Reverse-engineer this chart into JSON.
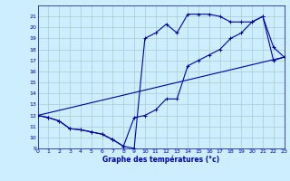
{
  "title": "Graphe des températures (°c)",
  "background_color": "#cceeff",
  "grid_color": "#aacccc",
  "line_color": "#0000aa",
  "ylim": [
    9,
    22
  ],
  "xlim": [
    0,
    23
  ],
  "yticks": [
    9,
    10,
    11,
    12,
    13,
    14,
    15,
    16,
    17,
    18,
    19,
    20,
    21
  ],
  "xticks": [
    0,
    1,
    2,
    3,
    4,
    5,
    6,
    7,
    8,
    9,
    10,
    11,
    12,
    13,
    14,
    15,
    16,
    17,
    18,
    19,
    20,
    21,
    22,
    23
  ],
  "series1_x": [
    0,
    1,
    2,
    3,
    4,
    5,
    6,
    7,
    8,
    9,
    10,
    11,
    12,
    13,
    14,
    15,
    16,
    17,
    18,
    19,
    20,
    21,
    22,
    23
  ],
  "series1_y": [
    12.0,
    11.8,
    11.5,
    10.8,
    10.7,
    10.5,
    10.3,
    9.8,
    9.2,
    9.0,
    19.0,
    19.5,
    20.3,
    19.5,
    21.2,
    21.2,
    21.2,
    21.0,
    20.5,
    20.5,
    20.5,
    21.0,
    18.2,
    17.3
  ],
  "series2_x": [
    0,
    1,
    2,
    3,
    4,
    5,
    6,
    7,
    8,
    9,
    10,
    11,
    12,
    13,
    14,
    15,
    16,
    17,
    18,
    19,
    20,
    21,
    22,
    23
  ],
  "series2_y": [
    12.0,
    11.8,
    11.5,
    10.8,
    10.7,
    10.5,
    10.3,
    9.8,
    9.2,
    11.8,
    12.0,
    12.5,
    13.5,
    13.5,
    16.5,
    17.0,
    17.5,
    18.0,
    19.0,
    19.5,
    20.5,
    21.0,
    17.0,
    17.3
  ],
  "series3_x": [
    0,
    23
  ],
  "series3_y": [
    12.0,
    17.3
  ]
}
